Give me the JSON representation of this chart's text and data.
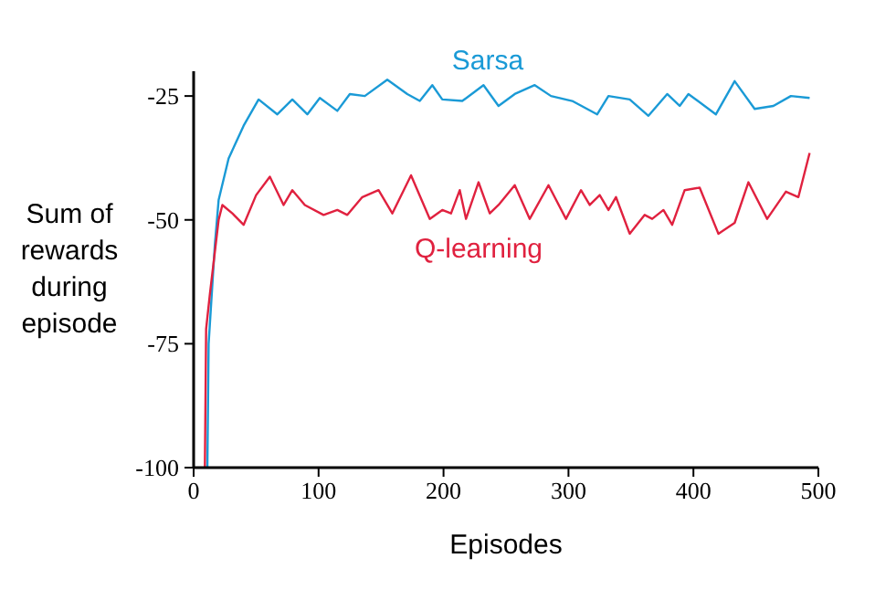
{
  "chart_data": {
    "type": "line",
    "xlabel": "Episodes",
    "ylabel": "Sum of rewards during episode",
    "xlim": [
      0,
      500
    ],
    "ylim": [
      -100,
      -20
    ],
    "xticks": [
      0,
      100,
      200,
      300,
      400,
      500
    ],
    "yticks": [
      -100,
      -75,
      -50,
      -25
    ],
    "grid": false,
    "series": [
      {
        "name": "Sarsa",
        "color": "#1a9ad6",
        "x": [
          11,
          12,
          17,
          20,
          28,
          40,
          52,
          67,
          79,
          91,
          101,
          115,
          125,
          137,
          155,
          171,
          181,
          191,
          199,
          215,
          232,
          244,
          257,
          273,
          286,
          303,
          323,
          332,
          349,
          364,
          379,
          389,
          396,
          418,
          433,
          449,
          464,
          478,
          493
        ],
        "values": [
          -100,
          -75,
          -55,
          -46,
          -37.6,
          -31,
          -25.7,
          -28.7,
          -25.7,
          -28.7,
          -25.4,
          -28,
          -24.6,
          -25,
          -21.7,
          -24.6,
          -26,
          -22.8,
          -25.7,
          -26,
          -22.8,
          -27,
          -24.6,
          -22.8,
          -25,
          -26,
          -28.7,
          -25,
          -25.7,
          -29,
          -24.6,
          -27,
          -24.6,
          -28.7,
          -22,
          -27.6,
          -27,
          -25,
          -25.4
        ]
      },
      {
        "name": "Q-learning",
        "color": "#e0213f",
        "x": [
          9,
          10,
          13,
          20,
          23,
          31,
          40,
          50,
          61,
          72,
          79,
          89,
          104,
          115,
          123,
          135,
          148,
          159,
          174,
          189,
          199,
          206,
          213,
          218,
          228,
          237,
          244,
          257,
          269,
          284,
          298,
          310,
          317,
          325,
          332,
          338,
          349,
          361,
          367,
          376,
          383,
          393,
          405,
          420,
          433,
          444,
          459,
          474,
          484,
          493
        ],
        "values": [
          -100,
          -72,
          -65,
          -50,
          -47,
          -48.7,
          -51,
          -45,
          -41.3,
          -47,
          -44,
          -47,
          -49,
          -48,
          -49,
          -45.4,
          -44,
          -48.7,
          -41,
          -49.8,
          -48,
          -48.7,
          -44,
          -49.8,
          -42.4,
          -48.7,
          -47,
          -43,
          -49.8,
          -43,
          -49.8,
          -44,
          -47,
          -45,
          -48,
          -45.4,
          -52.8,
          -49,
          -49.8,
          -48,
          -51,
          -44,
          -43.5,
          -52.8,
          -50.6,
          -42.4,
          -49.8,
          -44.3,
          -45.4,
          -36.5
        ]
      }
    ]
  }
}
